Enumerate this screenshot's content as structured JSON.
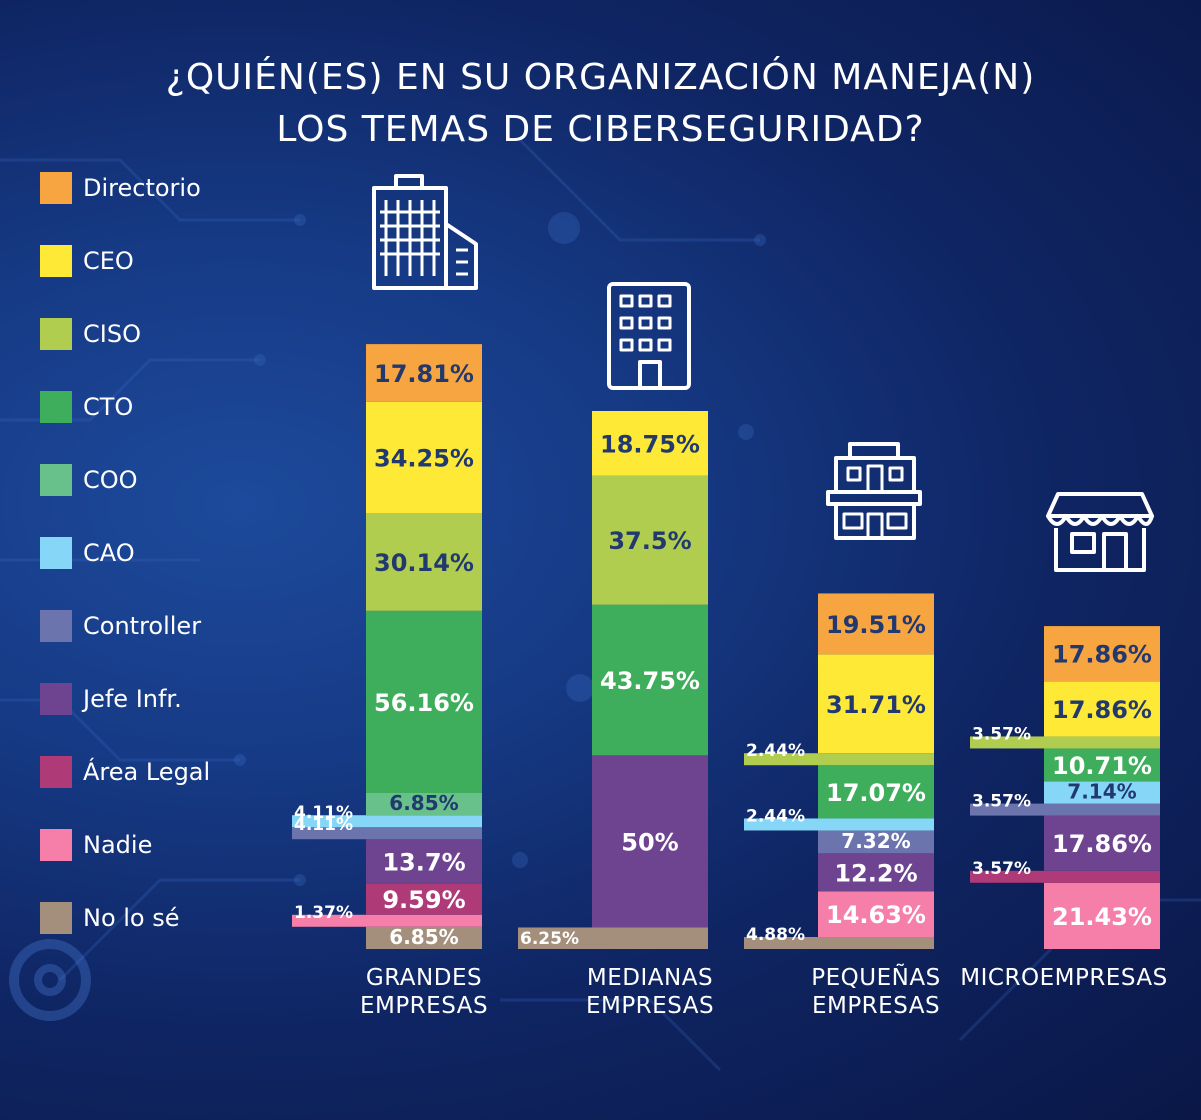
{
  "title": {
    "line1": "¿QUIÉN(ES) EN SU ORGANIZACIÓN MANEJA(N)",
    "line2": "LOS TEMAS DE CIBERSEGURIDAD?"
  },
  "colors": {
    "Directorio": "#f7a540",
    "CEO": "#fde936",
    "CISO": "#b1cd50",
    "CTO": "#3fae5c",
    "COO": "#68c08b",
    "CAO": "#86d6f7",
    "Controller": "#6b74ad",
    "Jefe Infr.": "#6e4490",
    "Área Legal": "#ae3a78",
    "Nadie": "#f67fa9",
    "No lo sé": "#a48e7c"
  },
  "legend": [
    "Directorio",
    "CEO",
    "CISO",
    "CTO",
    "COO",
    "CAO",
    "Controller",
    "Jefe Infr.",
    "Área Legal",
    "Nadie",
    "No lo sé"
  ],
  "icons": [
    "skyscraper-icon",
    "office-building-icon",
    "shop-building-icon",
    "storefront-icon"
  ],
  "chart_data": {
    "type": "bar",
    "stacked": true,
    "categories": [
      "GRANDES\nEMPRESAS",
      "MEDIANAS\nEMPRESAS",
      "PEQUEÑAS\nEMPRESAS",
      "MICROEMPRESAS"
    ],
    "series": [
      {
        "name": "Directorio",
        "values": [
          17.81,
          0,
          19.51,
          17.86
        ]
      },
      {
        "name": "CEO",
        "values": [
          34.25,
          18.75,
          31.71,
          17.86
        ]
      },
      {
        "name": "CISO",
        "values": [
          30.14,
          37.5,
          2.44,
          3.57
        ]
      },
      {
        "name": "CTO",
        "values": [
          56.16,
          43.75,
          17.07,
          10.71
        ]
      },
      {
        "name": "COO",
        "values": [
          6.85,
          0,
          0,
          0
        ]
      },
      {
        "name": "CAO",
        "values": [
          4.11,
          0,
          2.44,
          7.14
        ]
      },
      {
        "name": "Controller",
        "values": [
          4.11,
          0,
          7.32,
          3.57
        ]
      },
      {
        "name": "Jefe Infr.",
        "values": [
          13.7,
          50,
          12.2,
          17.86
        ]
      },
      {
        "name": "Área Legal",
        "values": [
          9.59,
          0,
          0,
          3.57
        ]
      },
      {
        "name": "Nadie",
        "values": [
          1.37,
          0,
          14.63,
          21.43
        ]
      },
      {
        "name": "No lo sé",
        "values": [
          6.85,
          6.25,
          4.88,
          0
        ]
      }
    ],
    "data_labels": [
      [
        "17.81%",
        "34.25%",
        "30.14%",
        "56.16%",
        "6.85%",
        "4.11%",
        "4.11%",
        "13.7%",
        "9.59%",
        "1.37%",
        "6.85%"
      ],
      [
        "",
        "18.75%",
        "37.5%",
        "43.75%",
        "",
        "",
        "",
        "50%",
        "",
        "",
        "6.25%"
      ],
      [
        "19.51%",
        "31.71%",
        "2.44%",
        "17.07%",
        "",
        "2.44%",
        "7.32%",
        "12.2%",
        "",
        "14.63%",
        "4.88%"
      ],
      [
        "17.86%",
        "17.86%",
        "3.57%",
        "10.71%",
        "",
        "7.14%",
        "3.57%",
        "17.86%",
        "3.57%",
        "21.43%",
        ""
      ]
    ],
    "legend_position": "left",
    "grid": false
  }
}
